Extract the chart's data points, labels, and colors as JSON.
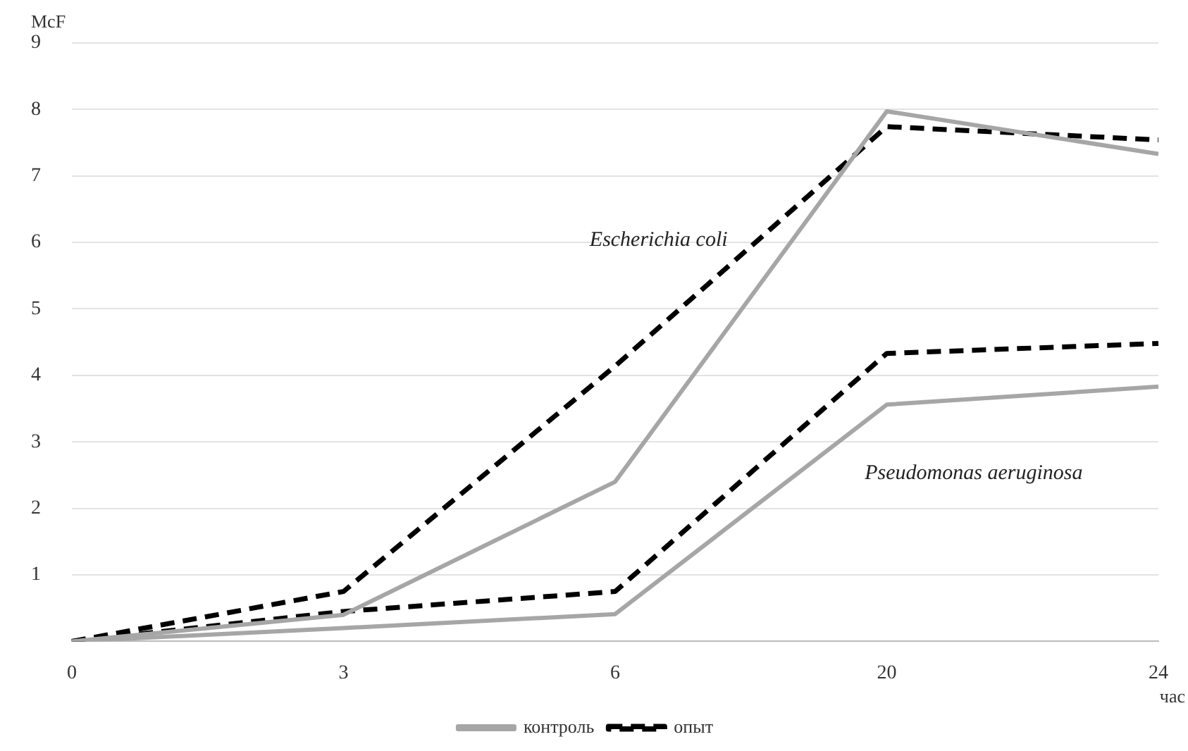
{
  "chart_data": {
    "type": "line",
    "ylabel": "McF",
    "xlabel": "час",
    "categories": [
      "0",
      "3",
      "6",
      "20",
      "24"
    ],
    "series": [
      {
        "name": "контроль",
        "color": "#a6a6a6",
        "line_style": "solid",
        "values": [
          0,
          0.4,
          2.4,
          7.97,
          7.33
        ]
      },
      {
        "name": "опыт",
        "color": "#000000",
        "line_style": "dashed",
        "values": [
          0,
          0.75,
          4.14,
          7.74,
          7.54
        ]
      },
      {
        "color": "#a6a6a6",
        "line_style": "solid",
        "values": [
          0,
          0.2,
          0.41,
          3.56,
          3.83
        ]
      },
      {
        "color": "#000000",
        "line_style": "dashed",
        "values": [
          0,
          0.45,
          0.75,
          4.33,
          4.48
        ]
      }
    ],
    "ylim": [
      0,
      9
    ],
    "yticks": [
      1,
      2,
      3,
      4,
      5,
      6,
      7,
      8,
      9
    ],
    "grid": "y",
    "legend": "bottom",
    "marker": "none",
    "annotations": [
      "Escherichia coli",
      "Pseudomonas aeruginosa"
    ]
  }
}
